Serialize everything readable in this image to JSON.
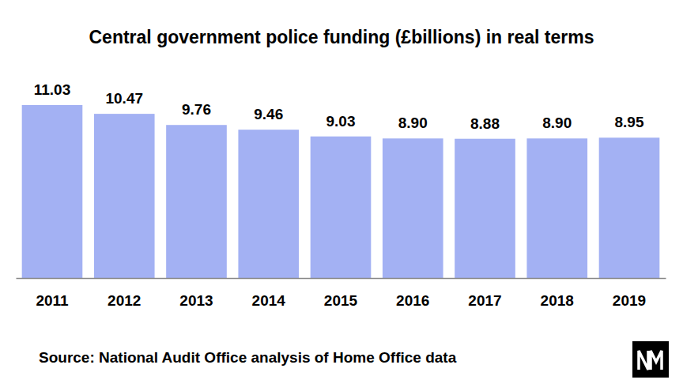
{
  "chart_data": {
    "type": "bar",
    "title": "Central government police funding (£billions) in real terms",
    "categories": [
      "2011",
      "2012",
      "2013",
      "2014",
      "2015",
      "2016",
      "2017",
      "2018",
      "2019"
    ],
    "values": [
      11.03,
      10.47,
      9.76,
      9.46,
      9.03,
      8.9,
      8.88,
      8.9,
      8.95
    ],
    "value_labels": [
      "11.03",
      "10.47",
      "9.76",
      "9.46",
      "9.03",
      "8.90",
      "8.88",
      "8.90",
      "8.95"
    ],
    "color": "#a3b1f3",
    "ylim": [
      0,
      11.03
    ],
    "grid": false,
    "data_labels": true,
    "tick_labels": "x",
    "source": "Source: National Audit Office analysis of Home Office data"
  }
}
